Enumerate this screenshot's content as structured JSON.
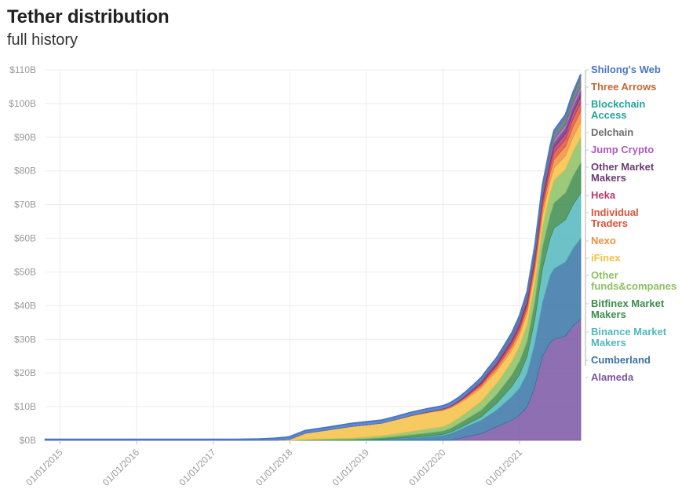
{
  "chart_data": {
    "type": "area",
    "stacked": true,
    "title": "Tether distribution",
    "subtitle": "full history",
    "xlabel": "",
    "ylabel": "",
    "ylim": [
      0,
      110
    ],
    "y_unit": "B",
    "y_ticks": [
      "$0B",
      "$10B",
      "$20B",
      "$30B",
      "$40B",
      "$50B",
      "$60B",
      "$70B",
      "$80B",
      "$90B",
      "$100B",
      "$110B"
    ],
    "x_ticks": [
      "01/01/2015",
      "01/01/2016",
      "01/01/2017",
      "01/01/2018",
      "01/01/2019",
      "01/01/2020",
      "01/01/2021"
    ],
    "x": [
      2014.8,
      2015.5,
      2016.5,
      2017.3,
      2017.6,
      2017.8,
      2017.95,
      2018.0,
      2018.2,
      2018.5,
      2018.8,
      2019.0,
      2019.2,
      2019.4,
      2019.6,
      2019.8,
      2020.0,
      2020.1,
      2020.2,
      2020.3,
      2020.4,
      2020.5,
      2020.6,
      2020.7,
      2020.8,
      2020.9,
      2021.0,
      2021.1,
      2021.2,
      2021.3,
      2021.4,
      2021.45,
      2021.6,
      2021.7,
      2021.8
    ],
    "grid": true,
    "legend_position": "right",
    "series": [
      {
        "name": "Alameda",
        "color": "#7a56a3",
        "values": [
          0,
          0,
          0,
          0,
          0,
          0,
          0,
          0,
          0,
          0,
          0,
          0,
          0,
          0,
          0,
          0,
          0,
          0,
          0.5,
          1,
          1.5,
          2,
          3,
          4,
          5,
          6,
          7.5,
          10,
          16,
          25,
          29,
          30,
          31,
          34,
          36
        ]
      },
      {
        "name": "Cumberland",
        "color": "#3874a6",
        "values": [
          0,
          0,
          0,
          0,
          0,
          0,
          0,
          0,
          0,
          0,
          0,
          0.1,
          0.3,
          0.5,
          0.8,
          1,
          1.5,
          2,
          2.5,
          3,
          3.5,
          4,
          4.5,
          5,
          6,
          7,
          8,
          10,
          13,
          16,
          20,
          21,
          22,
          23,
          24
        ]
      },
      {
        "name": "Binance Market Makers",
        "color": "#52b7bc",
        "values": [
          0,
          0,
          0,
          0,
          0,
          0,
          0,
          0,
          0,
          0,
          0,
          0,
          0,
          0.1,
          0.1,
          0.2,
          0.3,
          0.4,
          0.5,
          0.6,
          0.8,
          1,
          1.5,
          2,
          2.5,
          3,
          4,
          5,
          7,
          10,
          11,
          12,
          12.5,
          13,
          13.5
        ]
      },
      {
        "name": "Bitfinex Market Makers",
        "color": "#3e8c4f",
        "values": [
          0,
          0,
          0,
          0,
          0,
          0,
          0,
          0,
          0.1,
          0.2,
          0.3,
          0.4,
          0.5,
          0.6,
          0.8,
          1,
          1,
          1.2,
          1.4,
          1.6,
          1.8,
          2,
          2.3,
          2.6,
          3,
          3.5,
          4,
          4.5,
          5.5,
          6.5,
          7,
          7.5,
          8,
          8.5,
          9
        ]
      },
      {
        "name": "Other funds&companes",
        "color": "#8cc064",
        "values": [
          0,
          0,
          0,
          0,
          0,
          0,
          0,
          0,
          0.2,
          0.3,
          0.4,
          0.5,
          0.6,
          0.8,
          1,
          1.2,
          1.3,
          1.5,
          1.7,
          2,
          2.3,
          2.6,
          3,
          3.3,
          3.6,
          4,
          4.5,
          5,
          5.5,
          6,
          6.5,
          6.8,
          7,
          7.3,
          7.5
        ]
      },
      {
        "name": "iFinex",
        "color": "#f5c045",
        "values": [
          0,
          0,
          0,
          0,
          0,
          0,
          0.2,
          0.3,
          1.8,
          2.6,
          3.4,
          3.6,
          3.7,
          4.2,
          4.6,
          4.8,
          4.8,
          4.5,
          4.2,
          4,
          4,
          3.9,
          3.8,
          3.6,
          3.5,
          3.3,
          3.2,
          3.2,
          3.2,
          3.3,
          3.5,
          3.6,
          4,
          4.3,
          4.5
        ]
      },
      {
        "name": "Nexo",
        "color": "#f08f3c",
        "values": [
          0,
          0,
          0,
          0,
          0,
          0,
          0,
          0,
          0,
          0,
          0,
          0,
          0,
          0,
          0.1,
          0.1,
          0.2,
          0.3,
          0.4,
          0.5,
          0.6,
          0.7,
          0.8,
          0.9,
          1,
          1.1,
          1.2,
          1.4,
          1.6,
          2,
          2.3,
          2.5,
          2.8,
          3,
          3.2
        ]
      },
      {
        "name": "Individual Traders",
        "color": "#e0523a",
        "values": [
          0,
          0,
          0,
          0,
          0,
          0,
          0,
          0,
          0,
          0,
          0,
          0,
          0,
          0,
          0.05,
          0.1,
          0.1,
          0.15,
          0.2,
          0.3,
          0.4,
          0.5,
          0.6,
          0.7,
          0.8,
          0.9,
          1,
          1.1,
          1.3,
          1.5,
          1.8,
          2,
          2.2,
          2.4,
          2.5
        ]
      },
      {
        "name": "Heka",
        "color": "#b73a6f",
        "values": [
          0,
          0,
          0,
          0,
          0,
          0,
          0,
          0,
          0,
          0,
          0,
          0,
          0,
          0,
          0,
          0,
          0.05,
          0.1,
          0.1,
          0.15,
          0.2,
          0.3,
          0.35,
          0.4,
          0.5,
          0.6,
          0.7,
          0.8,
          1,
          1.2,
          1.4,
          1.5,
          1.6,
          1.8,
          1.9
        ]
      },
      {
        "name": "Other Market Makers",
        "color": "#6b3a74",
        "values": [
          0,
          0,
          0,
          0,
          0,
          0,
          0,
          0,
          0,
          0,
          0,
          0,
          0,
          0.05,
          0.05,
          0.1,
          0.1,
          0.15,
          0.2,
          0.25,
          0.3,
          0.4,
          0.45,
          0.5,
          0.6,
          0.7,
          0.8,
          0.9,
          1,
          1.2,
          1.3,
          1.4,
          1.5,
          1.6,
          1.7
        ]
      },
      {
        "name": "Jump Crypto",
        "color": "#ae5bbf",
        "values": [
          0,
          0,
          0,
          0,
          0,
          0,
          0,
          0,
          0,
          0,
          0,
          0,
          0,
          0,
          0,
          0,
          0,
          0,
          0.05,
          0.1,
          0.1,
          0.15,
          0.2,
          0.25,
          0.3,
          0.35,
          0.4,
          0.5,
          0.6,
          0.8,
          1,
          1.1,
          1.2,
          1.3,
          1.4
        ]
      },
      {
        "name": "Delchain",
        "color": "#6d6d6d",
        "values": [
          0,
          0,
          0,
          0,
          0,
          0,
          0,
          0,
          0,
          0,
          0,
          0,
          0,
          0,
          0,
          0,
          0,
          0,
          0,
          0.05,
          0.05,
          0.1,
          0.1,
          0.15,
          0.2,
          0.25,
          0.3,
          0.35,
          0.4,
          0.5,
          0.6,
          0.6,
          0.7,
          0.8,
          0.9
        ]
      },
      {
        "name": "Blockchain Access",
        "color": "#23a49c",
        "values": [
          0,
          0,
          0,
          0,
          0,
          0,
          0,
          0,
          0,
          0,
          0,
          0,
          0,
          0,
          0,
          0,
          0,
          0,
          0,
          0,
          0.05,
          0.05,
          0.1,
          0.1,
          0.15,
          0.2,
          0.25,
          0.3,
          0.35,
          0.4,
          0.5,
          0.6,
          0.7,
          0.8,
          0.9
        ]
      },
      {
        "name": "Three Arrows",
        "color": "#c26837",
        "values": [
          0,
          0,
          0,
          0,
          0,
          0,
          0,
          0,
          0,
          0,
          0,
          0,
          0,
          0,
          0,
          0,
          0,
          0,
          0,
          0,
          0,
          0.05,
          0.05,
          0.1,
          0.1,
          0.15,
          0.2,
          0.25,
          0.3,
          0.35,
          0.4,
          0.4,
          0.5,
          0.6,
          0.7
        ]
      },
      {
        "name": "Shilong's Web",
        "color": "#4a76c4",
        "values": [
          0.3,
          0.3,
          0.3,
          0.3,
          0.4,
          0.6,
          0.7,
          0.8,
          0.8,
          0.8,
          0.9,
          0.9,
          0.9,
          0.9,
          0.9,
          0.9,
          0.9,
          0.9,
          0.9,
          0.9,
          0.9,
          0.9,
          0.9,
          0.9,
          0.9,
          0.9,
          0.9,
          0.9,
          1,
          1,
          1,
          1,
          1,
          1,
          1
        ]
      }
    ]
  }
}
